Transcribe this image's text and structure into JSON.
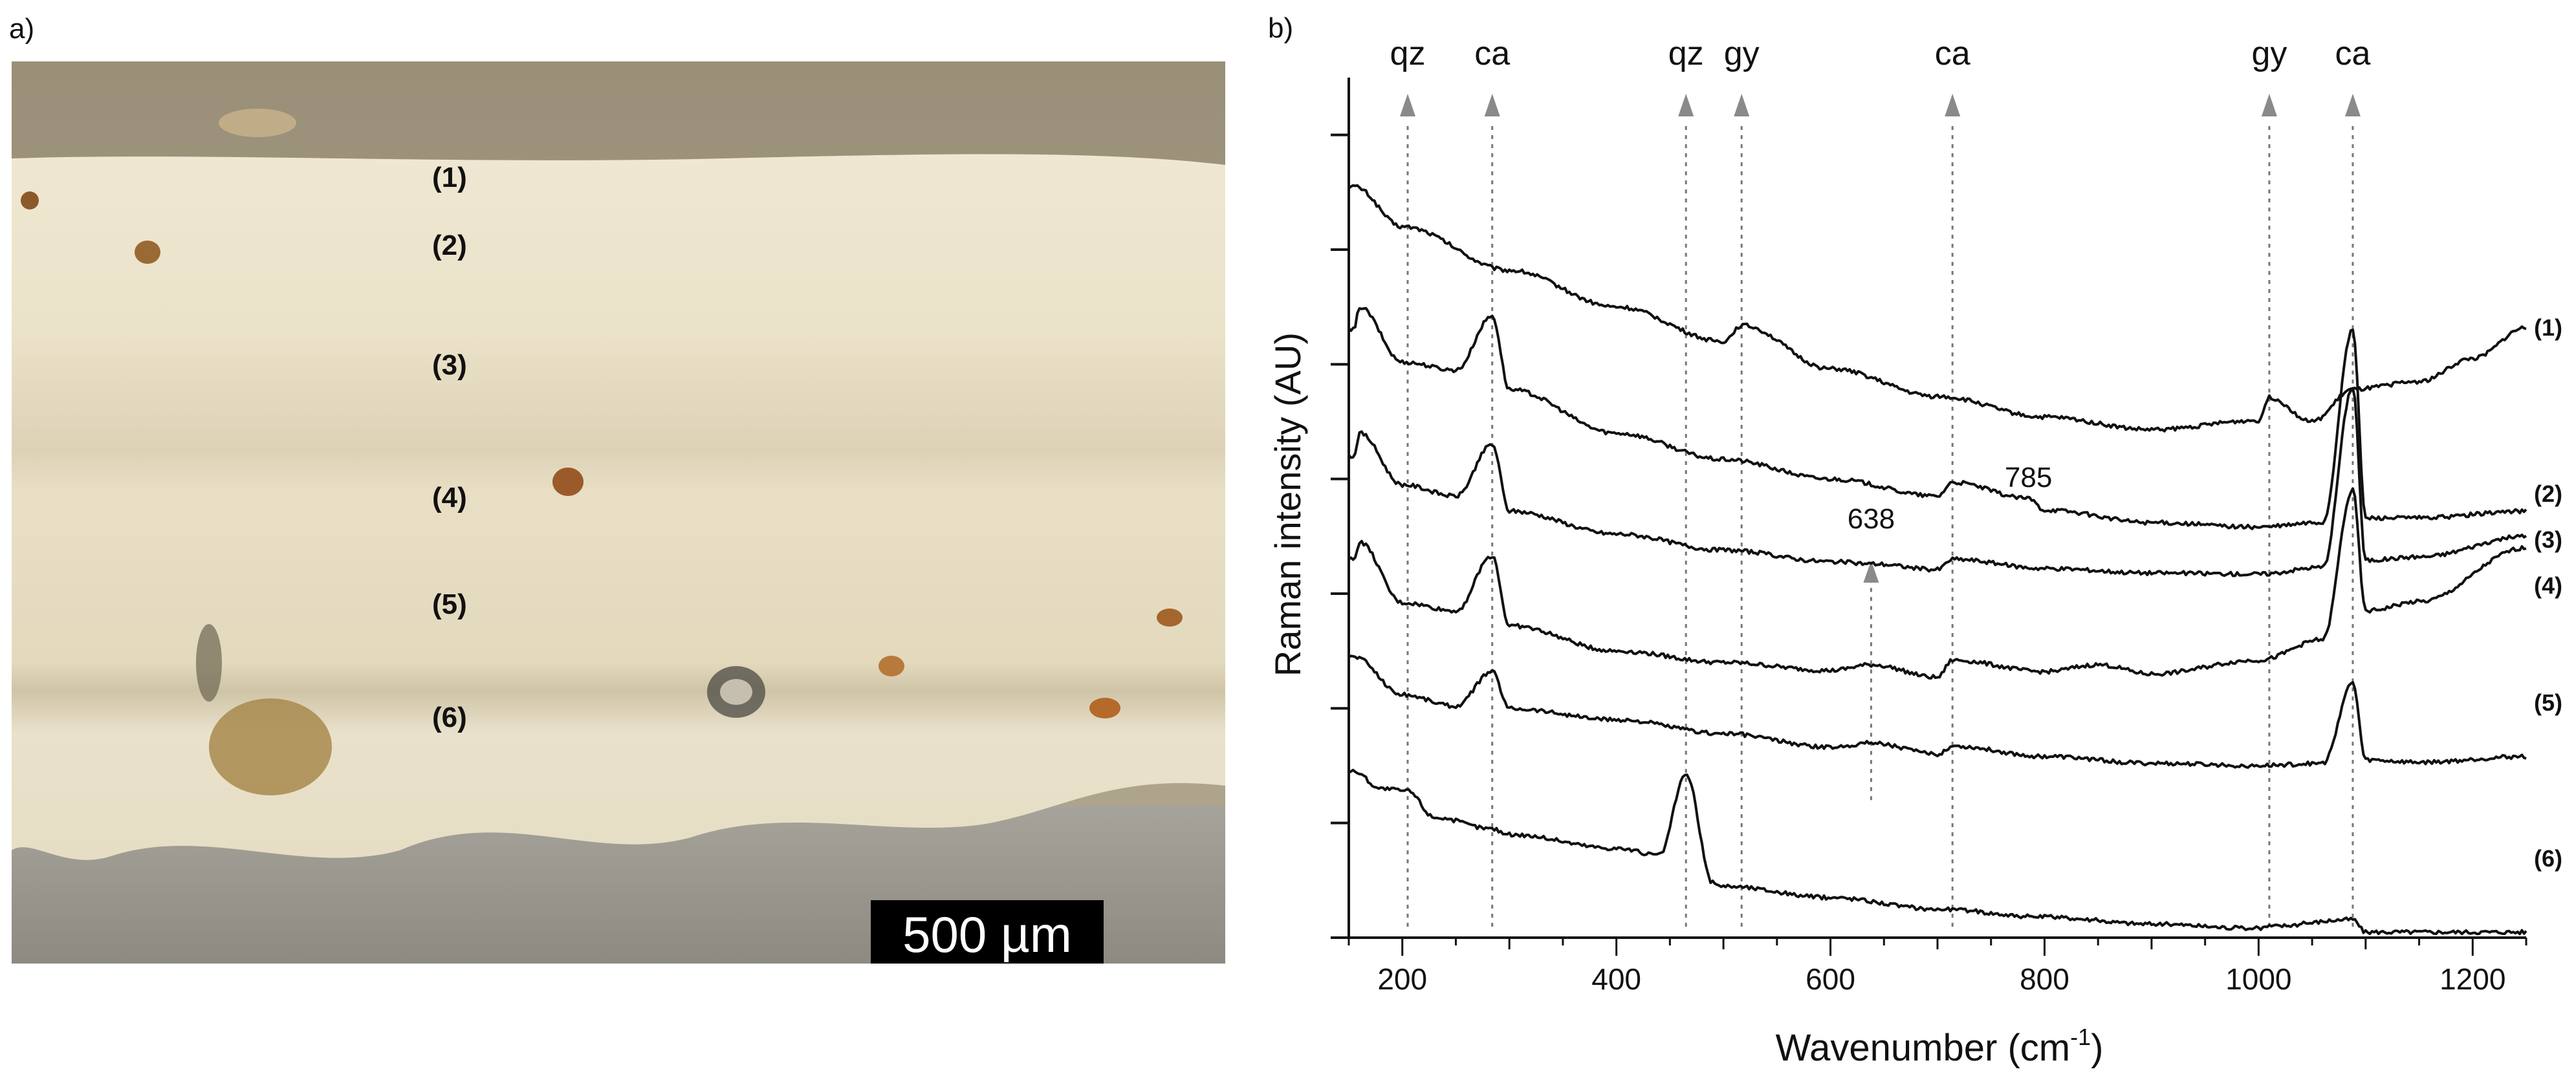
{
  "panel_a": {
    "label": "a)",
    "layers": [
      "(1)",
      "(2)",
      "(3)",
      "(4)",
      "(5)",
      "(6)"
    ],
    "scale_bar_text": "500 µm"
  },
  "colors": {
    "trace": "#111111",
    "arrow": "#8a8a8a",
    "guide": "#777777"
  },
  "chart_data": {
    "type": "line",
    "panel_label": "b)",
    "title": "",
    "xlabel_main": "Wavenumber (cm",
    "xlabel_sup": "-1",
    "xlabel_close": ")",
    "ylabel": "Raman intensity (AU)",
    "xlim": [
      150,
      1250
    ],
    "ylim": [
      0,
      7.5
    ],
    "xticks": [
      200,
      400,
      600,
      800,
      1000,
      1200
    ],
    "yticks": [
      0,
      1,
      2,
      3,
      4,
      5,
      6,
      7
    ],
    "grid": false,
    "peak_markers": [
      {
        "label": "qz",
        "x": 205
      },
      {
        "label": "ca",
        "x": 284
      },
      {
        "label": "qz",
        "x": 465
      },
      {
        "label": "gy",
        "x": 517
      },
      {
        "label": "ca",
        "x": 714
      },
      {
        "label": "gy",
        "x": 1010
      },
      {
        "label": "ca",
        "x": 1088
      }
    ],
    "annotations": [
      {
        "label": "785",
        "x": 785,
        "y": 3.93
      },
      {
        "label": "638",
        "x": 638,
        "y": 3.57
      }
    ],
    "annotation_arrow": {
      "x": 638,
      "y_from": 1.2,
      "y_to": 3.22
    },
    "series": [
      {
        "name": "(1)",
        "label_y": 5.25,
        "x": [
          155,
          200,
          300,
          400,
          500,
          517,
          600,
          700,
          800,
          900,
          1000,
          1010,
          1050,
          1088,
          1150,
          1200,
          1250
        ],
        "y": [
          6.55,
          6.2,
          5.82,
          5.5,
          5.2,
          5.34,
          4.96,
          4.72,
          4.54,
          4.43,
          4.51,
          4.71,
          4.5,
          4.78,
          4.85,
          5.05,
          5.32
        ]
      },
      {
        "name": "(2)",
        "label_y": 3.8,
        "x": [
          155,
          160,
          200,
          250,
          284,
          300,
          400,
          500,
          600,
          700,
          714,
          785,
          800,
          900,
          1000,
          1060,
          1088,
          1100,
          1150,
          1250
        ],
        "y": [
          5.3,
          5.5,
          5.02,
          4.95,
          5.42,
          4.78,
          4.4,
          4.17,
          4.0,
          3.85,
          3.97,
          3.83,
          3.73,
          3.62,
          3.58,
          3.62,
          5.3,
          3.66,
          3.66,
          3.72
        ]
      },
      {
        "name": "(3)",
        "label_y": 3.4,
        "x": [
          155,
          160,
          200,
          250,
          284,
          300,
          400,
          500,
          600,
          638,
          700,
          714,
          800,
          900,
          1000,
          1060,
          1088,
          1100,
          1150,
          1250
        ],
        "y": [
          4.2,
          4.4,
          3.95,
          3.85,
          4.3,
          3.72,
          3.52,
          3.38,
          3.28,
          3.26,
          3.21,
          3.3,
          3.22,
          3.18,
          3.17,
          3.23,
          4.8,
          3.29,
          3.32,
          3.5
        ]
      },
      {
        "name": "(4)",
        "label_y": 3.0,
        "x": [
          155,
          160,
          200,
          250,
          284,
          300,
          400,
          500,
          600,
          638,
          700,
          714,
          800,
          850,
          900,
          1000,
          1060,
          1088,
          1100,
          1150,
          1250
        ],
        "y": [
          3.3,
          3.45,
          2.92,
          2.85,
          3.33,
          2.72,
          2.5,
          2.4,
          2.33,
          2.38,
          2.27,
          2.42,
          2.32,
          2.38,
          2.3,
          2.42,
          2.6,
          3.9,
          2.85,
          2.93,
          3.4
        ]
      },
      {
        "name": "(5)",
        "label_y": 1.98,
        "x": [
          155,
          200,
          250,
          284,
          300,
          400,
          500,
          600,
          638,
          700,
          714,
          800,
          900,
          1000,
          1060,
          1088,
          1100,
          1150,
          1250
        ],
        "y": [
          2.45,
          2.12,
          2.02,
          2.32,
          2.0,
          1.9,
          1.78,
          1.66,
          1.7,
          1.6,
          1.67,
          1.58,
          1.52,
          1.5,
          1.52,
          2.22,
          1.55,
          1.53,
          1.58
        ]
      },
      {
        "name": "(6)",
        "label_y": 0.62,
        "x": [
          155,
          180,
          205,
          230,
          284,
          300,
          400,
          440,
          465,
          490,
          500,
          600,
          700,
          800,
          900,
          1000,
          1010,
          1088,
          1100,
          1250
        ],
        "y": [
          1.45,
          1.3,
          1.28,
          1.05,
          0.95,
          0.9,
          0.78,
          0.72,
          1.42,
          0.48,
          0.45,
          0.35,
          0.25,
          0.18,
          0.12,
          0.08,
          0.1,
          0.16,
          0.05,
          0.05
        ]
      }
    ]
  }
}
